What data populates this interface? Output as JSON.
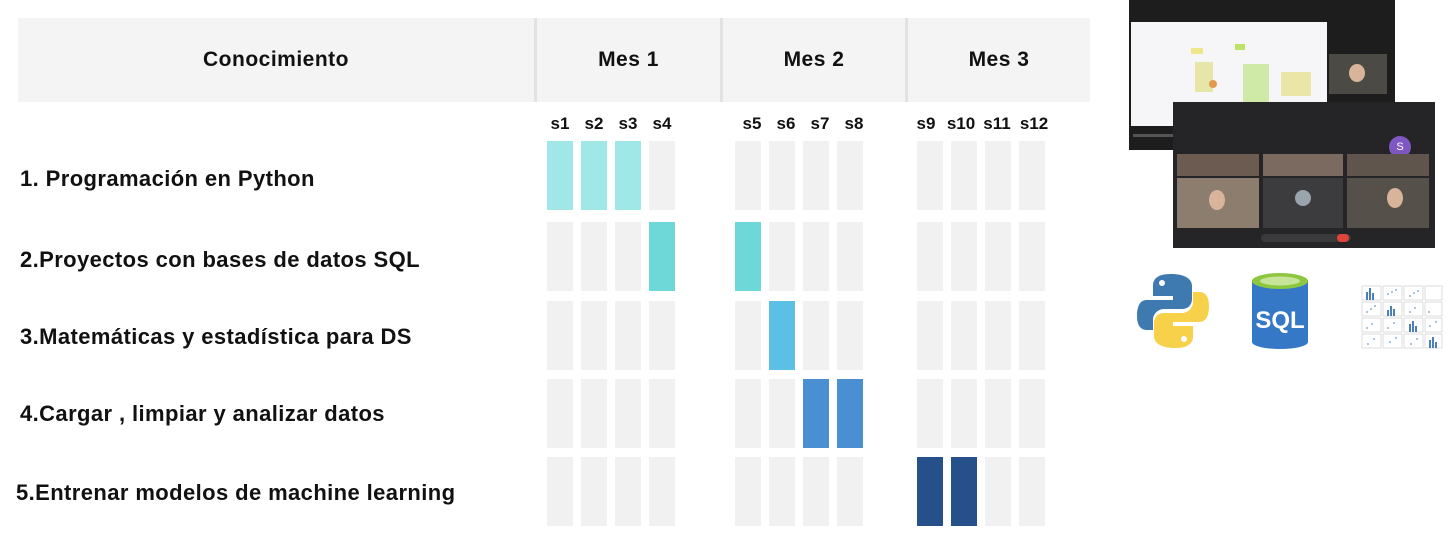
{
  "header": {
    "knowledge": "Conocimiento",
    "months": [
      "Mes 1",
      "Mes 2",
      "Mes 3"
    ],
    "weeks": [
      "s1",
      "s2",
      "s3",
      "s4",
      "s5",
      "s6",
      "s7",
      "s8",
      "s9",
      "s10",
      "s11",
      "s12"
    ]
  },
  "chart_data": {
    "type": "table",
    "rows": [
      {
        "label": "1. Programación en Python",
        "active_weeks": [
          1,
          2,
          3
        ],
        "color": "#a0e8e8"
      },
      {
        "label": "2.Proyectos con bases de datos SQL",
        "active_weeks": [
          4,
          5
        ],
        "color": "#6ed8d8"
      },
      {
        "label": "3.Matemáticas y estadística para DS",
        "active_weeks": [
          6
        ],
        "color": "#5bbfe6"
      },
      {
        "label": "4.Cargar , limpiar y analizar datos",
        "active_weeks": [
          7,
          8
        ],
        "color": "#4a8fd2"
      },
      {
        "label": "5.Entrenar modelos de machine learning",
        "active_weeks": [
          9,
          10
        ],
        "color": "#26508a"
      }
    ],
    "empty_color": "#f1f1f1"
  },
  "logos": {
    "sql_text": "SQL"
  },
  "colors": {
    "header_bg": "#f4f4f4",
    "python_blue": "#3e79b0",
    "python_yellow": "#f7d14a",
    "sql_blue": "#3478c6",
    "sql_green": "#8dc63f"
  }
}
